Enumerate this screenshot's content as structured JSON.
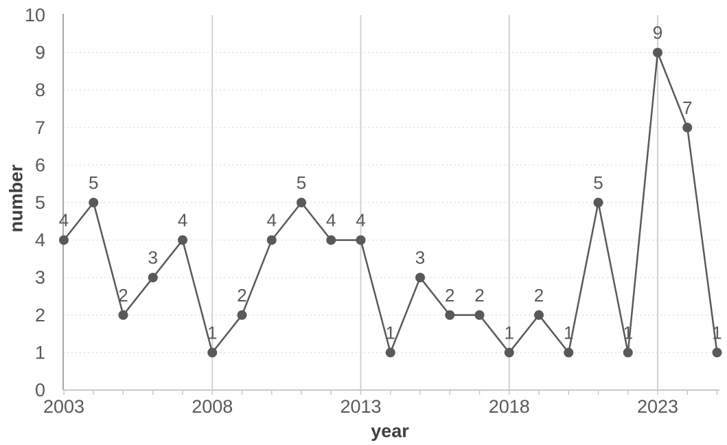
{
  "chart_data": {
    "type": "line",
    "title": "",
    "xlabel": "year",
    "ylabel": "number",
    "x": [
      2003,
      2004,
      2005,
      2006,
      2007,
      2008,
      2009,
      2010,
      2011,
      2012,
      2013,
      2014,
      2015,
      2016,
      2017,
      2018,
      2019,
      2020,
      2021,
      2022,
      2023,
      2024,
      2025
    ],
    "values": [
      4,
      5,
      2,
      3,
      4,
      1,
      2,
      4,
      5,
      4,
      4,
      1,
      3,
      2,
      2,
      1,
      2,
      1,
      5,
      1,
      9,
      7,
      1
    ],
    "data_labels_visible": true,
    "xlim": [
      2003,
      2025
    ],
    "ylim": [
      0,
      10
    ],
    "x_tick_labels": [
      "2003",
      "2008",
      "2013",
      "2018",
      "2023"
    ],
    "x_tick_years": [
      2003,
      2008,
      2013,
      2018,
      2023
    ],
    "x_gridline_years": [
      2008,
      2013,
      2018,
      2023
    ],
    "y_tick_labels": [
      "0",
      "1",
      "2",
      "3",
      "4",
      "5",
      "6",
      "7",
      "8",
      "9",
      "10"
    ],
    "y_ticks": [
      0,
      1,
      2,
      3,
      4,
      5,
      6,
      7,
      8,
      9,
      10
    ],
    "y_gridline_values": [
      1,
      2,
      3,
      4,
      5,
      6,
      7,
      8,
      9
    ],
    "grid": {
      "horizontal": "dotted",
      "vertical": "solid"
    },
    "legend": "none",
    "colors": {
      "series": "#595959",
      "marker": "#595959",
      "data_label": "#595959",
      "tick_label": "#595959",
      "axis_title": "#3f3f3f",
      "vertical_gridline": "#d2d2d2",
      "horizontal_gridline": "#e0e0e0",
      "x_axis_line": "#c9c9c9",
      "y_axis_line": "#a8a8a8",
      "background": "#ffffff"
    }
  }
}
